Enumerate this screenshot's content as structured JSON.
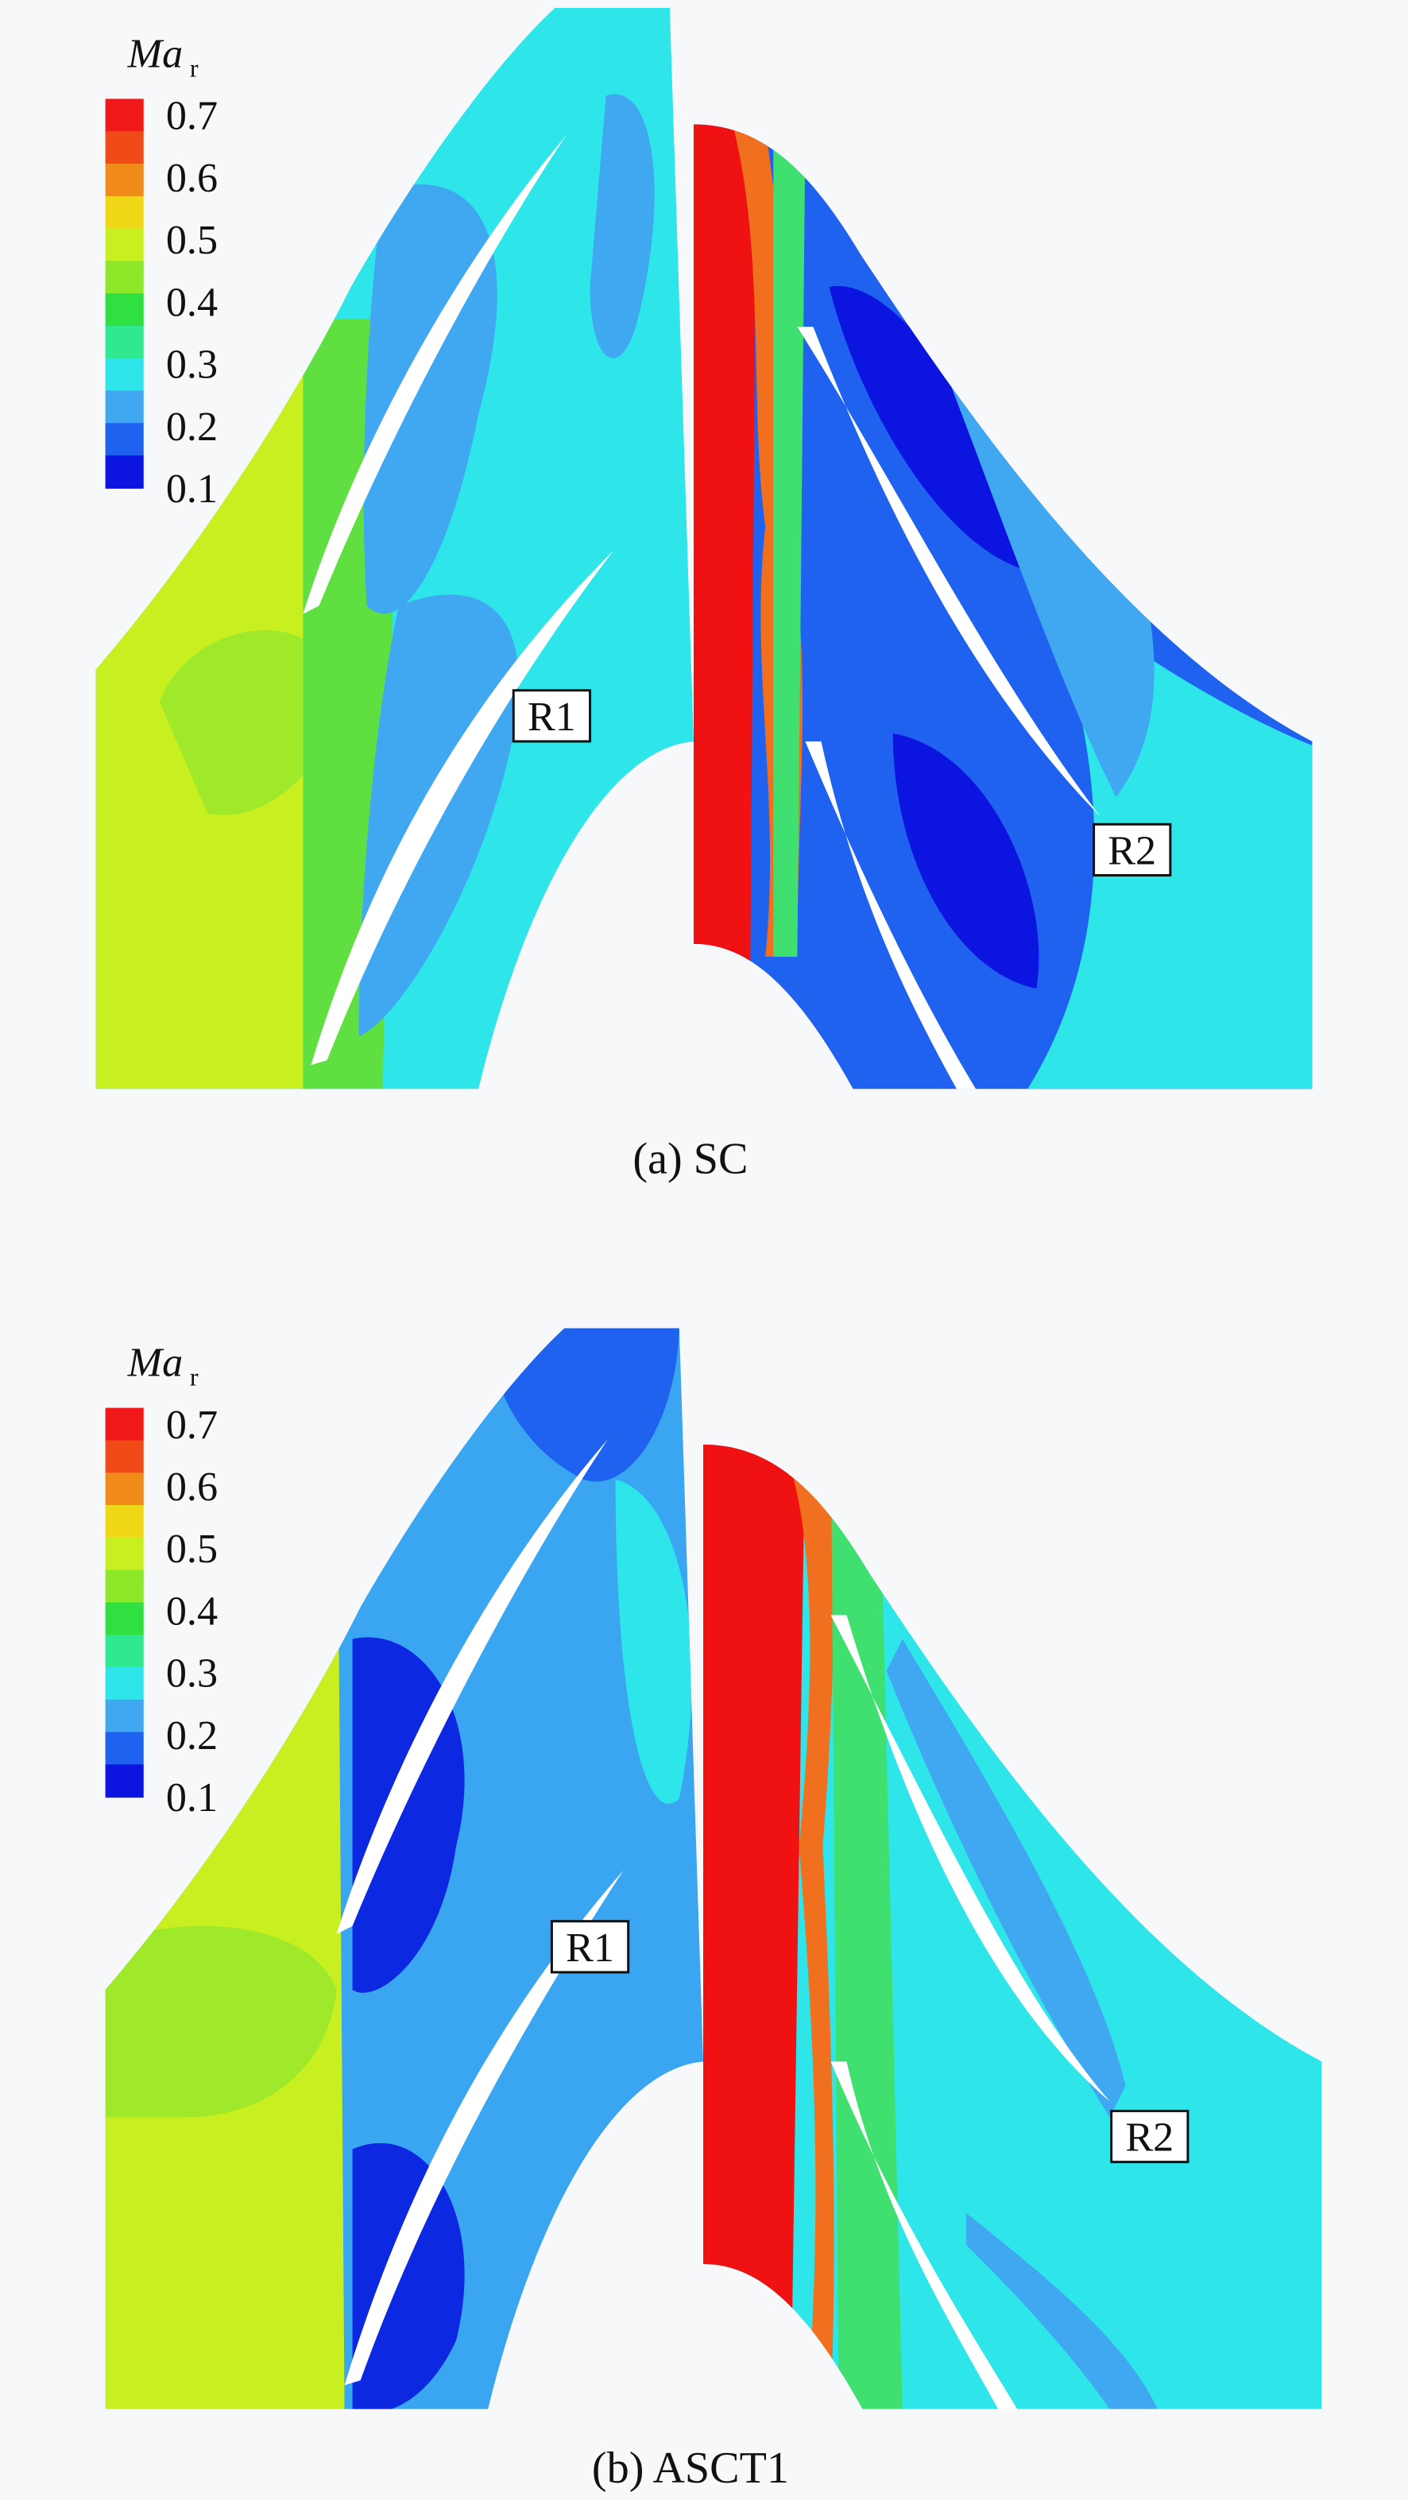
{
  "panels": [
    {
      "legend": {
        "title": "Ma",
        "subscript": "r",
        "levels": [
          0.7,
          0.6,
          0.5,
          0.4,
          0.3,
          0.2,
          0.1
        ]
      },
      "labels": [
        "R1",
        "R2"
      ],
      "caption": "(a) SC"
    },
    {
      "legend": {
        "title": "Ma",
        "subscript": "r",
        "levels": [
          0.7,
          0.6,
          0.5,
          0.4,
          0.3,
          0.2,
          0.1
        ]
      },
      "labels": [
        "R1",
        "R2"
      ],
      "caption": "(b) ASCT1"
    }
  ]
}
